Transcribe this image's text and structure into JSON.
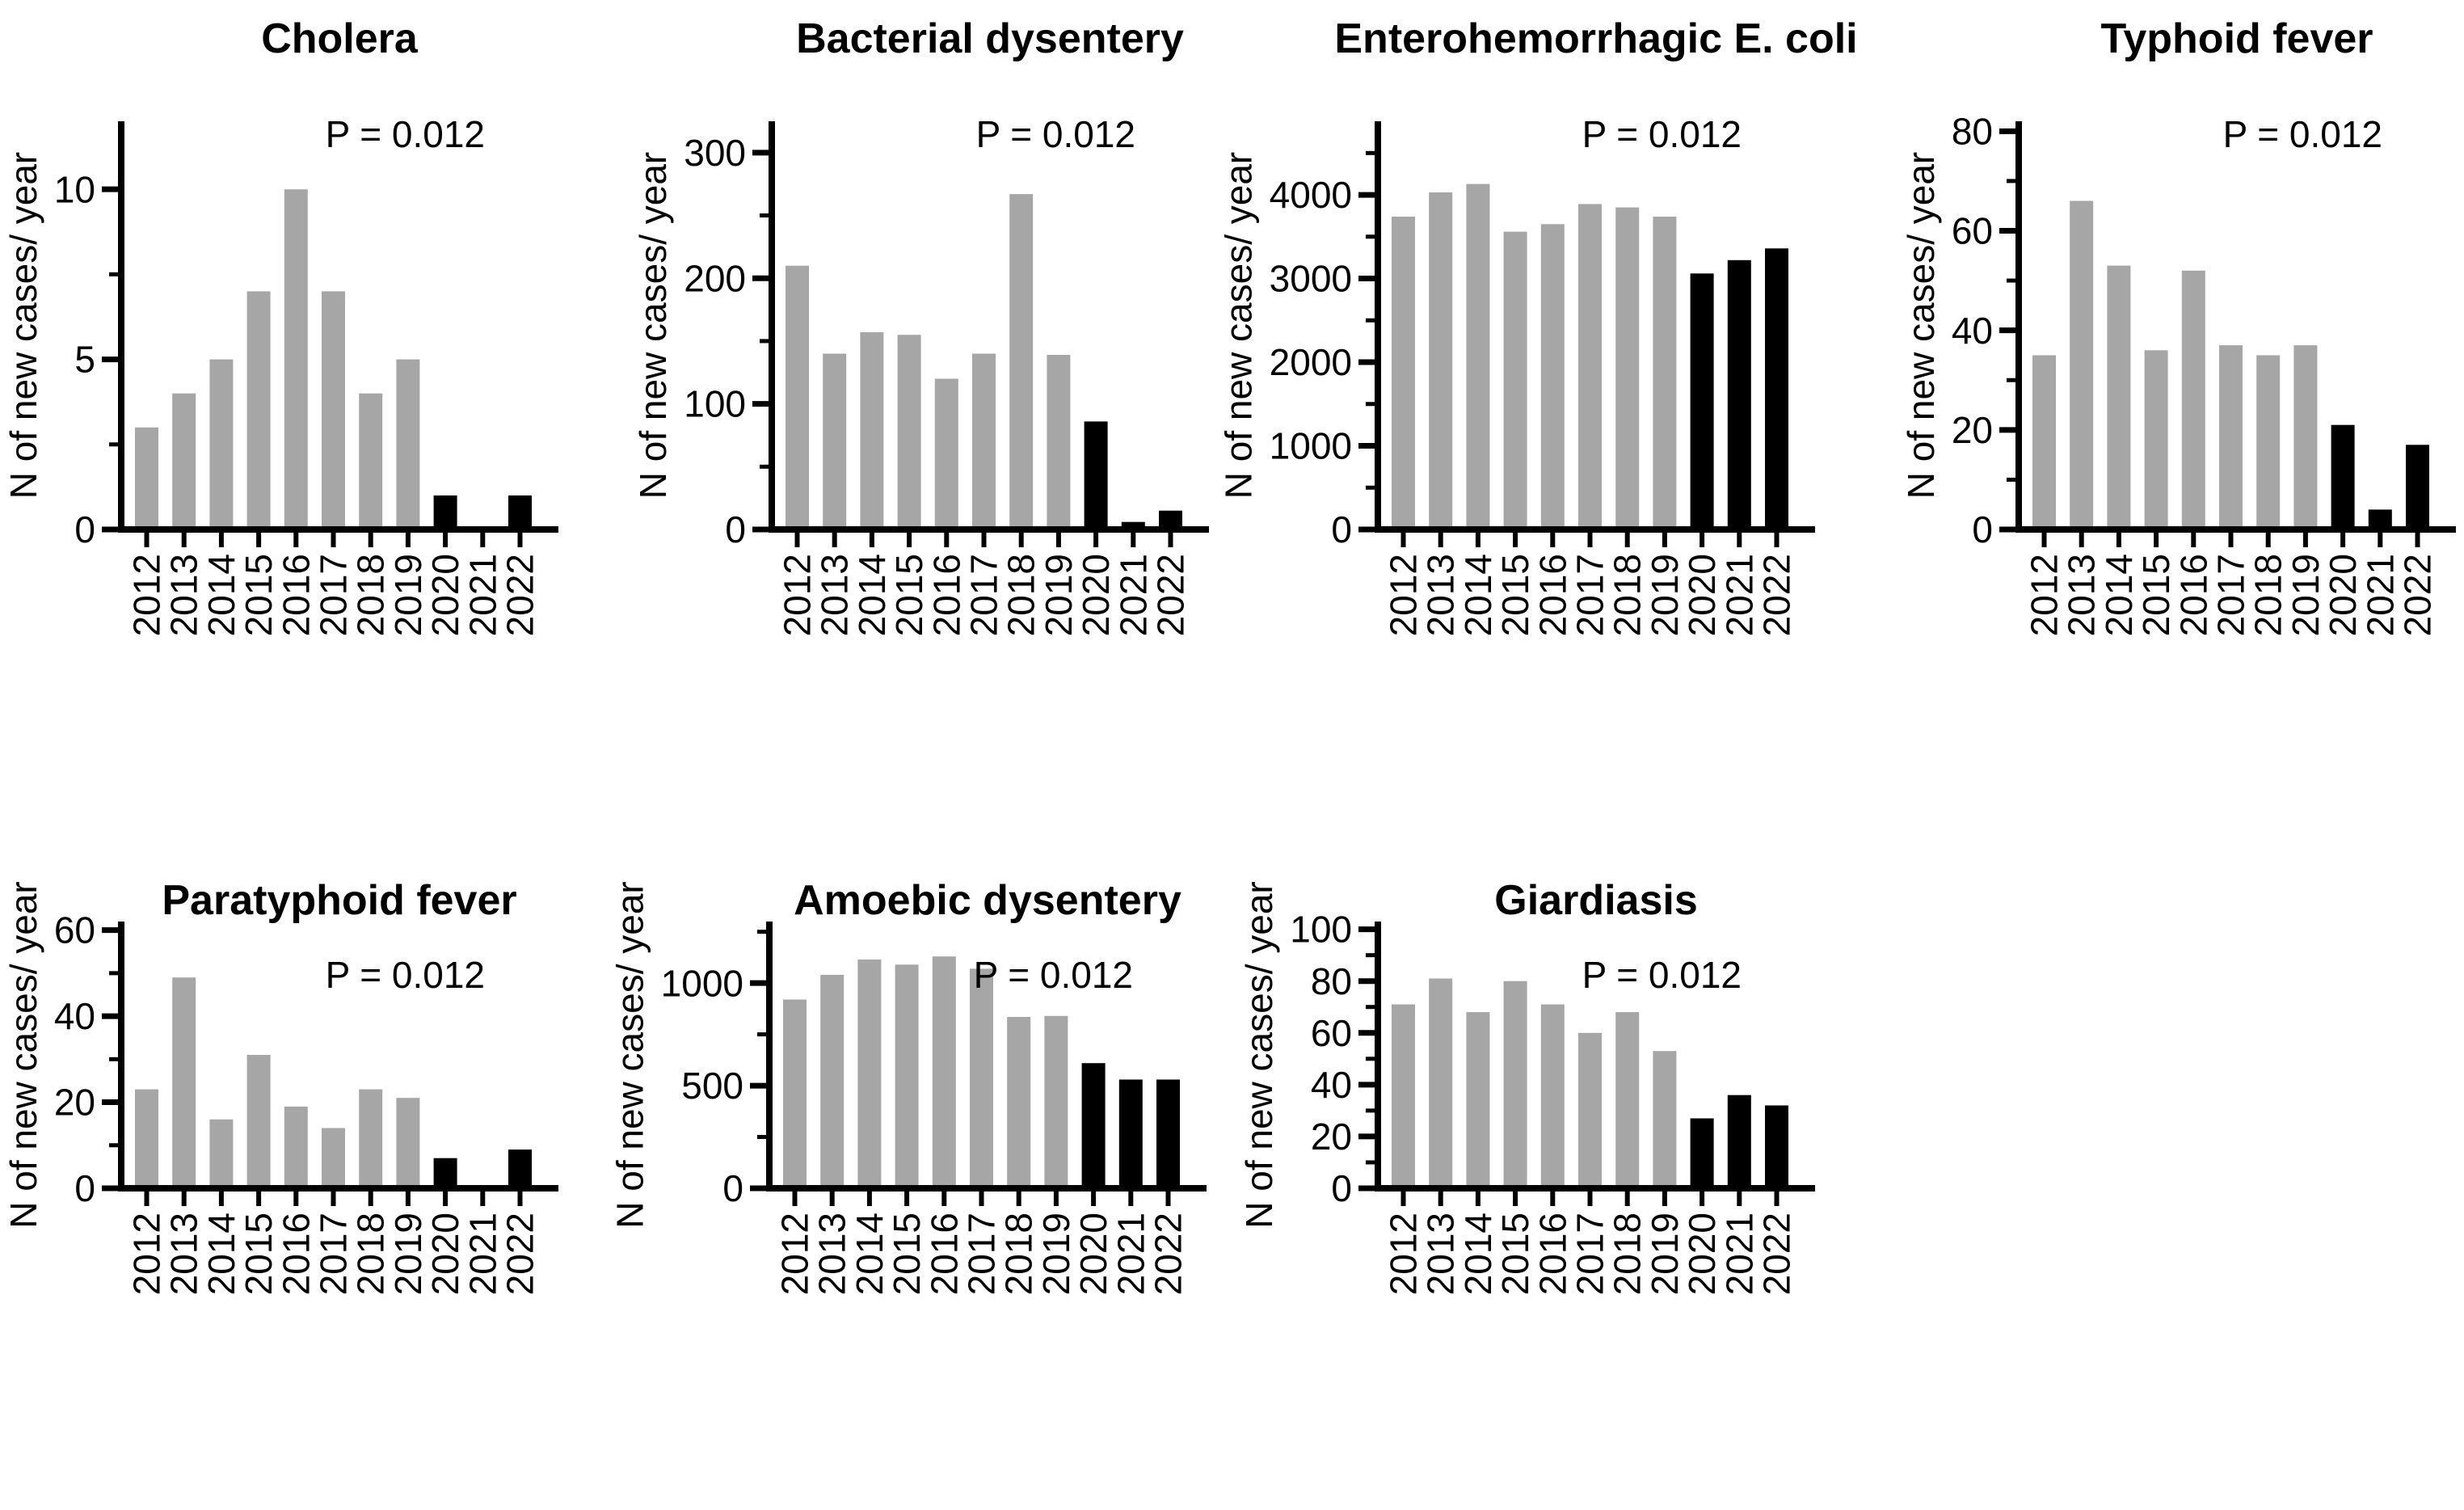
{
  "figure": {
    "background": "#ffffff",
    "p_label": "P = 0.012",
    "ylabel": "N of new cases/ year"
  },
  "colors": {
    "bar_gray": "#a6a6a6",
    "bar_black": "#000000",
    "axis": "#000000",
    "text": "#000000"
  },
  "chart_data": [
    {
      "type": "bar",
      "title": "Cholera",
      "p_label": "P = 0.012",
      "ylabel": "N of new cases/ year",
      "categories": [
        "2012",
        "2013",
        "2014",
        "2015",
        "2016",
        "2017",
        "2018",
        "2019",
        "2020",
        "2021",
        "2022"
      ],
      "values": [
        3,
        4,
        5,
        7,
        10,
        7,
        4,
        5,
        1,
        0,
        1
      ],
      "yticks": [
        0,
        5,
        10
      ],
      "minor_step": 2.5,
      "ylim": [
        0,
        12
      ],
      "black_from_index": 8,
      "legend": "none",
      "grid": false
    },
    {
      "type": "bar",
      "title": "Bacterial dysentery",
      "p_label": "P = 0.012",
      "ylabel": "N of new cases/ year",
      "categories": [
        "2012",
        "2013",
        "2014",
        "2015",
        "2016",
        "2017",
        "2018",
        "2019",
        "2020",
        "2021",
        "2022"
      ],
      "values": [
        210,
        140,
        157,
        155,
        120,
        140,
        267,
        139,
        86,
        6,
        15
      ],
      "yticks": [
        0,
        100,
        200,
        300
      ],
      "minor_step": 50,
      "ylim": [
        0,
        325
      ],
      "black_from_index": 8,
      "legend": "none",
      "grid": false
    },
    {
      "type": "bar",
      "title": "Enterohemorrhagic E. coli",
      "p_label": "P = 0.012",
      "ylabel": "N of new cases/ year",
      "categories": [
        "2012",
        "2013",
        "2014",
        "2015",
        "2016",
        "2017",
        "2018",
        "2019",
        "2020",
        "2021",
        "2022"
      ],
      "values": [
        3740,
        4030,
        4130,
        3560,
        3650,
        3890,
        3850,
        3740,
        3060,
        3220,
        3360
      ],
      "yticks": [
        0,
        1000,
        2000,
        3000,
        4000
      ],
      "minor_step": 500,
      "ylim": [
        0,
        4880
      ],
      "black_from_index": 8,
      "legend": "none",
      "grid": false
    },
    {
      "type": "bar",
      "title": "Typhoid fever",
      "p_label": "P = 0.012",
      "ylabel": "N of new cases/ year",
      "categories": [
        "2012",
        "2013",
        "2014",
        "2015",
        "2016",
        "2017",
        "2018",
        "2019",
        "2020",
        "2021",
        "2022"
      ],
      "values": [
        35,
        66,
        53,
        36,
        52,
        37,
        35,
        37,
        21,
        4,
        17
      ],
      "yticks": [
        0,
        20,
        40,
        60,
        80
      ],
      "minor_step": 10,
      "ylim": [
        0,
        82
      ],
      "black_from_index": 8,
      "legend": "none",
      "grid": false
    },
    {
      "type": "bar",
      "title": "Paratyphoid fever",
      "p_label": "P = 0.012",
      "ylabel": "N of new cases/ year",
      "categories": [
        "2012",
        "2013",
        "2014",
        "2015",
        "2016",
        "2017",
        "2018",
        "2019",
        "2020",
        "2021",
        "2022"
      ],
      "values": [
        23,
        49,
        16,
        31,
        19,
        14,
        23,
        21,
        7,
        0,
        9
      ],
      "yticks": [
        0,
        20,
        40,
        60
      ],
      "minor_step": 10,
      "ylim": [
        0,
        62
      ],
      "black_from_index": 8,
      "legend": "none",
      "grid": false
    },
    {
      "type": "bar",
      "title": "Amoebic dysentery",
      "p_label": "P = 0.012",
      "ylabel": "N of new cases/ year",
      "categories": [
        "2012",
        "2013",
        "2014",
        "2015",
        "2016",
        "2017",
        "2018",
        "2019",
        "2020",
        "2021",
        "2022"
      ],
      "values": [
        920,
        1040,
        1115,
        1090,
        1130,
        1070,
        835,
        840,
        610,
        530,
        530
      ],
      "yticks": [
        0,
        500,
        1000
      ],
      "minor_step": 250,
      "ylim": [
        0,
        1300
      ],
      "black_from_index": 8,
      "legend": "none",
      "grid": false
    },
    {
      "type": "bar",
      "title": "Giardiasis",
      "p_label": "P = 0.012",
      "ylabel": "N of new cases/ year",
      "categories": [
        "2012",
        "2013",
        "2014",
        "2015",
        "2016",
        "2017",
        "2018",
        "2019",
        "2020",
        "2021",
        "2022"
      ],
      "values": [
        71,
        81,
        68,
        80,
        71,
        60,
        68,
        53,
        27,
        36,
        32
      ],
      "yticks": [
        0,
        20,
        40,
        60,
        80,
        100
      ],
      "minor_step": 10,
      "ylim": [
        0,
        103
      ],
      "black_from_index": 8,
      "legend": "none",
      "grid": false
    }
  ]
}
